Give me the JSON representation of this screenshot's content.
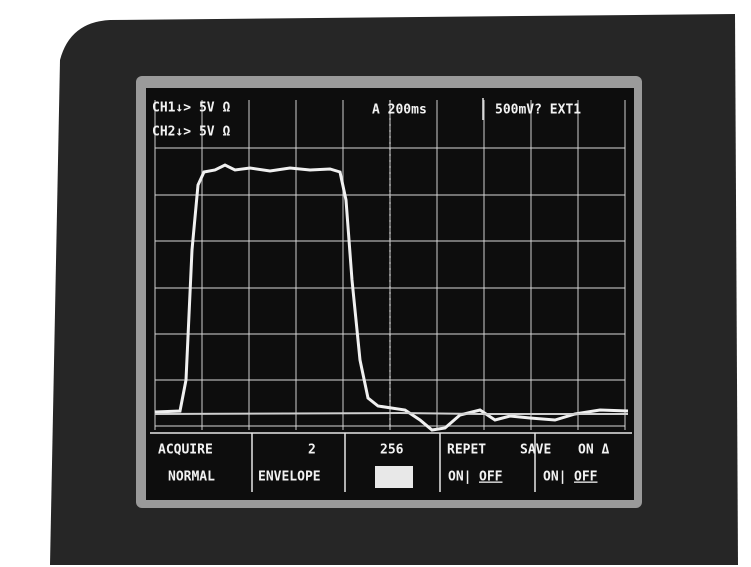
{
  "readout": {
    "ch1": "CH1↓> 5V Ω",
    "ch2": "CH2↓> 5V Ω",
    "timebase": "A 200ms",
    "trigger": "500mV? EXT1"
  },
  "menu": {
    "top": [
      "ACQUIRE",
      "2",
      "256",
      "REPET",
      "SAVE",
      "ON Δ"
    ],
    "bottom": [
      "NORMAL",
      "ENVELOPE",
      "ON|",
      "OFF",
      "ON|",
      "OFF"
    ]
  }
}
